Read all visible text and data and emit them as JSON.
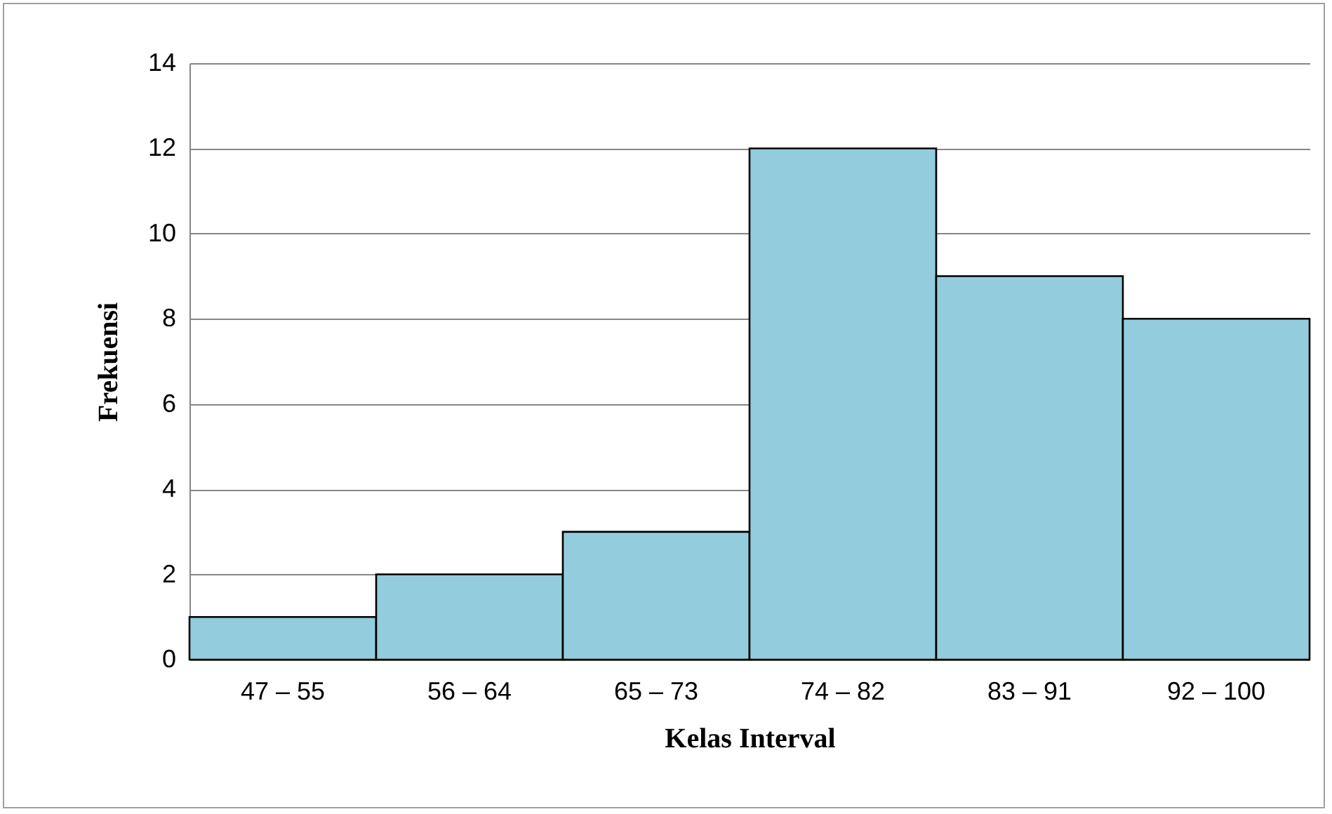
{
  "chart_data": {
    "type": "bar",
    "xlabel": "Kelas Interval",
    "ylabel": "Frekuensi",
    "categories": [
      "47 – 55",
      "56 – 64",
      "65 – 73",
      "74 – 82",
      "83 – 91",
      "92 – 100"
    ],
    "values": [
      1,
      2,
      3,
      12,
      9,
      8
    ],
    "color": "#93cddd",
    "ylim": [
      0,
      14
    ],
    "yticks": [
      0,
      2,
      4,
      6,
      8,
      10,
      12,
      14
    ],
    "grid": "y"
  }
}
